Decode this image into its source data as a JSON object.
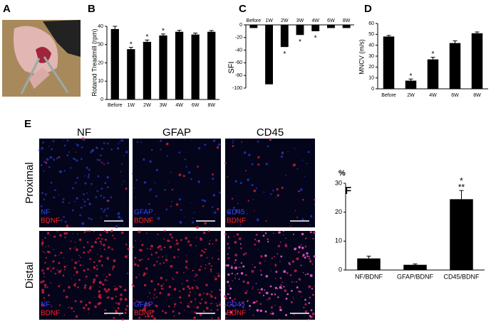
{
  "panels": {
    "a": "A",
    "e": "E"
  },
  "e_panel": {
    "columns": [
      "NF",
      "GFAP",
      "CD45"
    ],
    "rows": [
      "Proximal",
      "Distal"
    ],
    "overlays": [
      [
        "NF",
        "BDNF"
      ],
      [
        "GFAP",
        "BDNF"
      ],
      [
        "CD45",
        "BDNF"
      ]
    ]
  },
  "chart_data": [
    {
      "type": "bar",
      "panel": "B",
      "ylabel": "Rotarod Treadmill (rpm)",
      "categories": [
        "Before",
        "1W",
        "2W",
        "3W",
        "4W",
        "6W",
        "8W"
      ],
      "values": [
        38.5,
        27.5,
        31.5,
        35,
        37,
        35.5,
        37
      ],
      "errors": [
        1.5,
        1,
        1,
        0.8,
        0.8,
        0.8,
        0.7
      ],
      "significance": [
        null,
        [
          "*"
        ],
        [
          "*"
        ],
        [
          "*"
        ],
        null,
        null,
        null
      ],
      "color": "#000000",
      "ylim": [
        0,
        40
      ],
      "yticks": [
        0,
        10,
        20,
        30,
        40
      ]
    },
    {
      "type": "bar",
      "panel": "C",
      "ylabel": "SFI",
      "categories": [
        "Before",
        "1W",
        "2W",
        "3W",
        "4W",
        "6W",
        "8W"
      ],
      "values": [
        -5,
        -94,
        -35,
        -16,
        -10,
        -5,
        -5
      ],
      "significance": [
        null,
        null,
        [
          "*"
        ],
        [
          "*"
        ],
        [
          "*"
        ],
        null,
        null
      ],
      "color": "#000000",
      "ylim": [
        -100,
        0
      ],
      "yticks": [
        0,
        -20,
        -40,
        -60,
        -80,
        -100
      ]
    },
    {
      "type": "bar",
      "panel": "D",
      "ylabel": "MNCV (m/s)",
      "categories": [
        "Before",
        "2W",
        "4W",
        "6W",
        "8W"
      ],
      "values": [
        48,
        7.5,
        27,
        42,
        51
      ],
      "errors": [
        1,
        1.5,
        2,
        2,
        1.2
      ],
      "significance": [
        null,
        [
          "*"
        ],
        [
          "*"
        ],
        null,
        null
      ],
      "color": "#000000",
      "ylim": [
        0,
        60
      ],
      "yticks": [
        0,
        10,
        20,
        30,
        40,
        50,
        60
      ]
    },
    {
      "type": "bar",
      "panel": "F",
      "ylabel": "%",
      "categories": [
        "NF/BDNF",
        "GFAP/BDNF",
        "CD45/BDNF"
      ],
      "values": [
        4,
        1.8,
        24.5
      ],
      "errors": [
        0.8,
        0.3,
        3
      ],
      "significance": [
        null,
        null,
        [
          "*",
          "**"
        ]
      ],
      "color": "#000000",
      "ylim": [
        0,
        30
      ],
      "yticks": [
        0,
        10,
        20,
        30
      ]
    }
  ]
}
